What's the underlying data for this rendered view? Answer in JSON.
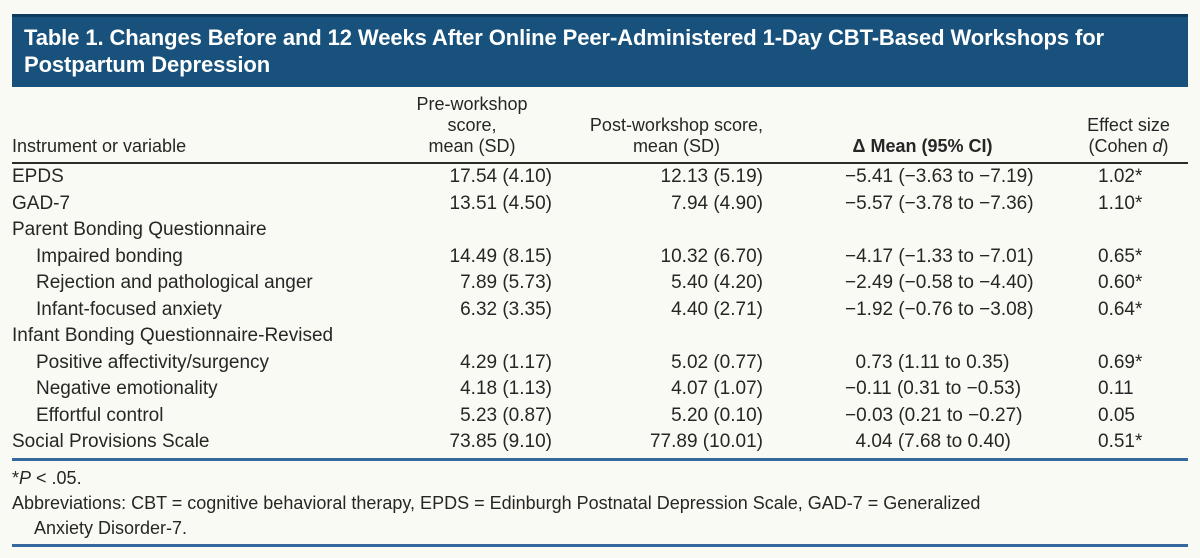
{
  "title": "Table 1. Changes Before and 12 Weeks After Online Peer-Administered 1-Day CBT-Based Workshops for Postpartum Depression",
  "colors": {
    "background": "#fafaf5",
    "title_bar": "#17517c",
    "title_bar_edge": "#0f3c5e",
    "header_rule": "#2b2b2b",
    "rule_blue": "#35689f",
    "text": "#262626"
  },
  "table": {
    "headers": {
      "instrument": "Instrument or variable",
      "pre_line1": "Pre-workshop score,",
      "pre_line2": "mean (SD)",
      "post_line1": "Post-workshop score,",
      "post_line2": "mean (SD)",
      "delta": "Δ Mean (95% CI)",
      "effect_line1": "Effect size",
      "effect_line2_pre": "(Cohen ",
      "effect_line2_d": "d",
      "effect_line2_post": ")"
    },
    "rows": [
      {
        "label": "EPDS",
        "indent": false,
        "pre": "17.54 (4.10)",
        "post": "12.13 (5.19)",
        "delta": "−5.41 (−3.63 to −7.19)",
        "effect": "1.02*"
      },
      {
        "label": "GAD-7",
        "indent": false,
        "pre": "13.51 (4.50)",
        "post": "7.94 (4.90)",
        "delta": "−5.57 (−3.78 to −7.36)",
        "effect": "1.10*"
      },
      {
        "label": "Parent Bonding Questionnaire",
        "indent": false,
        "pre": "",
        "post": "",
        "delta": "",
        "effect": ""
      },
      {
        "label": "Impaired bonding",
        "indent": true,
        "pre": "14.49 (8.15)",
        "post": "10.32 (6.70)",
        "delta": "−4.17 (−1.33 to −7.01)",
        "effect": "0.65*"
      },
      {
        "label": "Rejection and pathological anger",
        "indent": true,
        "pre": "7.89 (5.73)",
        "post": "5.40 (4.20)",
        "delta": "−2.49 (−0.58 to −4.40)",
        "effect": "0.60*"
      },
      {
        "label": "Infant-focused anxiety",
        "indent": true,
        "pre": "6.32 (3.35)",
        "post": "4.40 (2.71)",
        "delta": "−1.92 (−0.76 to −3.08)",
        "effect": "0.64*"
      },
      {
        "label": "Infant Bonding Questionnaire-Revised",
        "indent": false,
        "pre": "",
        "post": "",
        "delta": "",
        "effect": ""
      },
      {
        "label": "Positive affectivity/surgency",
        "indent": true,
        "pre": "4.29 (1.17)",
        "post": "5.02 (0.77)",
        "delta": "0.73 (1.11 to 0.35)",
        "effect": "0.69*"
      },
      {
        "label": "Negative emotionality",
        "indent": true,
        "pre": "4.18 (1.13)",
        "post": "4.07 (1.07)",
        "delta": "−0.11 (0.31 to −0.53)",
        "effect": "0.11"
      },
      {
        "label": "Effortful control",
        "indent": true,
        "pre": "5.23 (0.87)",
        "post": "5.20 (0.10)",
        "delta": "−0.03 (0.21 to −0.27)",
        "effect": "0.05"
      },
      {
        "label": "Social Provisions Scale",
        "indent": false,
        "pre": "73.85 (9.10)",
        "post": "77.89 (10.01)",
        "delta": "4.04 (7.68 to 0.40)",
        "effect": "0.51*"
      }
    ]
  },
  "footnotes": {
    "sig": {
      "star": "*",
      "p": "P",
      "rest": " < .05."
    },
    "abbrev_line1": "Abbreviations: CBT = cognitive behavioral therapy, EPDS = Edinburgh Postnatal Depression Scale, GAD-7 = Generalized",
    "abbrev_line2": "Anxiety Disorder-7."
  }
}
